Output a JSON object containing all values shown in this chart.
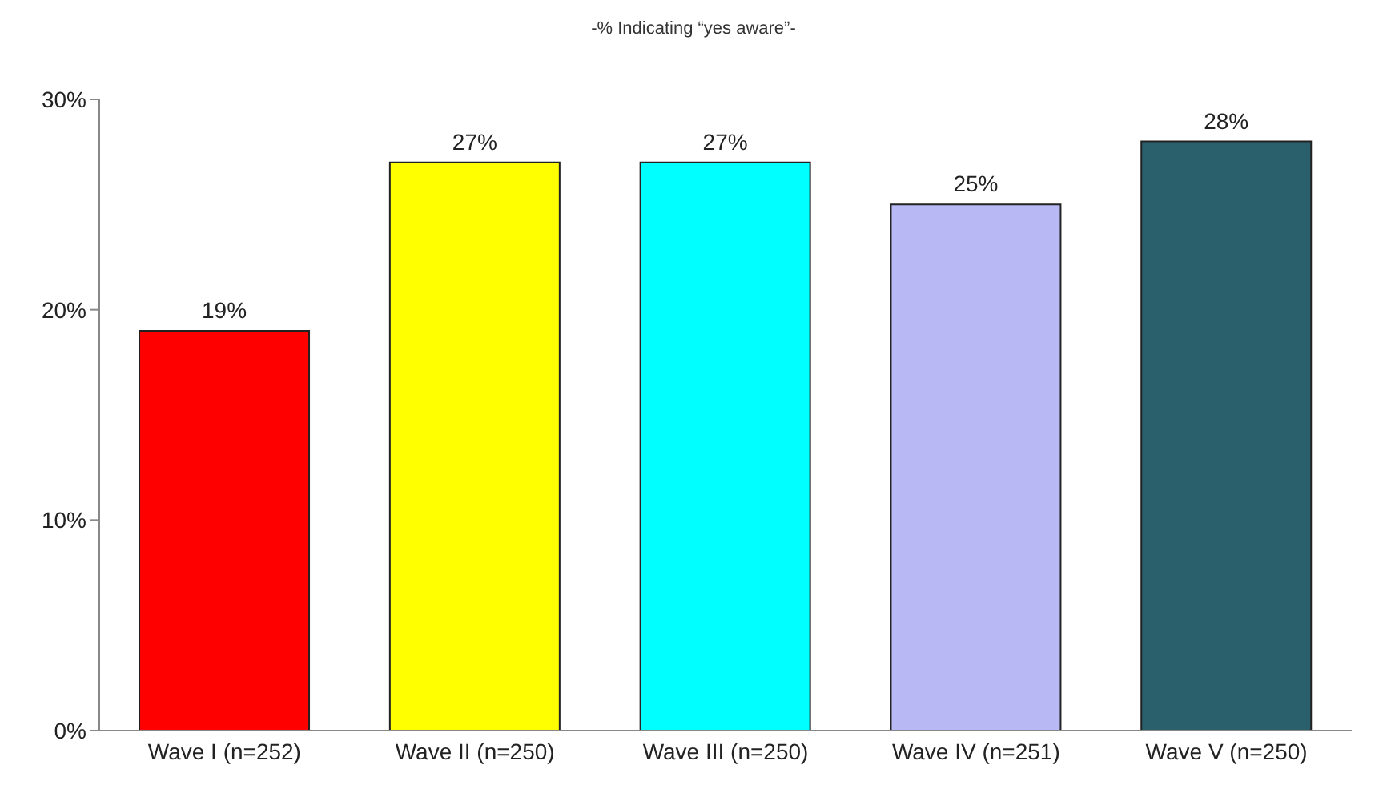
{
  "chart_data": {
    "type": "bar",
    "title": "-% Indicating “yes aware”-",
    "categories": [
      "Wave I (n=252)",
      "Wave II (n=250)",
      "Wave III (n=250)",
      "Wave IV (n=251)",
      "Wave V (n=250)"
    ],
    "values": [
      19,
      27,
      27,
      25,
      28
    ],
    "colors": [
      "#ff0000",
      "#ffff00",
      "#00ffff",
      "#b8b8f4",
      "#2a5f6c"
    ],
    "value_labels": [
      "19%",
      "27%",
      "27%",
      "25%",
      "28%"
    ],
    "ylim": [
      0,
      30
    ],
    "yticks": [
      {
        "value": 0,
        "label": "0%"
      },
      {
        "value": 10,
        "label": "10%"
      },
      {
        "value": 20,
        "label": "20%"
      },
      {
        "value": 30,
        "label": "30%"
      }
    ],
    "grid": false
  }
}
